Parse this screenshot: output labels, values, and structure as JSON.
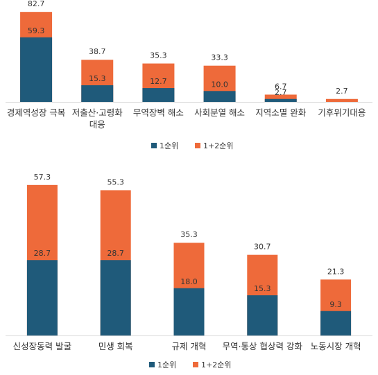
{
  "chart_data": [
    {
      "type": "bar",
      "stacking": "overlay",
      "categories": [
        "경제역성장 극복",
        "저출산·고령화 대응",
        "무역장벽 해소",
        "사회분열 해소",
        "지역소멸 완화",
        "기후위기대응"
      ],
      "category_lines": [
        [
          "경제역성장 극복"
        ],
        [
          "저출산·고령화",
          "대응"
        ],
        [
          "무역장벽 해소"
        ],
        [
          "사회분열 해소"
        ],
        [
          "지역소멸 완화"
        ],
        [
          "기후위기대응"
        ]
      ],
      "series": [
        {
          "name": "1순위",
          "values": [
            59.3,
            15.3,
            12.7,
            10.0,
            2.7,
            0.0
          ],
          "color": "#1F5A7A",
          "value_labels": [
            "59.3",
            "15.3",
            "12.7",
            "10.0",
            "2.7",
            ""
          ]
        },
        {
          "name": "1+2순위",
          "values": [
            82.7,
            38.7,
            35.3,
            33.3,
            6.7,
            2.7
          ],
          "color": "#EE6A3A",
          "value_labels": [
            "82.7",
            "38.7",
            "35.3",
            "33.3",
            "6.7",
            "2.7"
          ]
        }
      ],
      "legend_position": "bottom",
      "grid": false
    },
    {
      "type": "bar",
      "stacking": "overlay",
      "categories": [
        "신성장동력 발굴",
        "민생 회복",
        "규제 개혁",
        "무역·통상 협상력 강화",
        "노동시장 개혁"
      ],
      "category_lines": [
        [
          "신성장동력 발굴"
        ],
        [
          "민생 회복"
        ],
        [
          "규제 개혁"
        ],
        [
          "무역·통상 협상력 강화"
        ],
        [
          "노동시장 개혁"
        ]
      ],
      "series": [
        {
          "name": "1순위",
          "values": [
            28.7,
            28.7,
            18.0,
            15.3,
            9.3
          ],
          "color": "#1F5A7A",
          "value_labels": [
            "28.7",
            "28.7",
            "18.0",
            "15.3",
            "9.3"
          ]
        },
        {
          "name": "1+2순위",
          "values": [
            57.3,
            55.3,
            35.3,
            30.7,
            21.3
          ],
          "color": "#EE6A3A",
          "value_labels": [
            "57.3",
            "55.3",
            "35.3",
            "30.7",
            "21.3"
          ]
        }
      ],
      "legend_position": "bottom",
      "grid": false
    }
  ]
}
